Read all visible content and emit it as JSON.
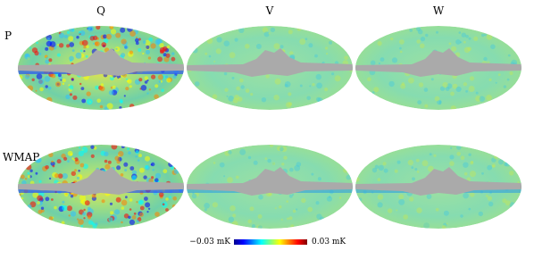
{
  "columns": [
    "Q",
    "V",
    "W"
  ],
  "rows": [
    "P",
    "WMAP"
  ],
  "colorbar": {
    "min_label": "−0.03 mK",
    "max_label": "0.03 mK"
  }
}
